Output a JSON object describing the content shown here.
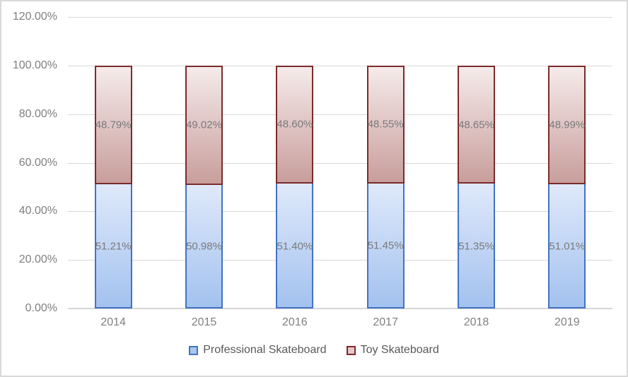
{
  "chart_data": {
    "type": "bar",
    "subtype": "stacked-100-percent-column",
    "title": "",
    "xlabel": "",
    "ylabel": "",
    "categories": [
      "2014",
      "2015",
      "2016",
      "2017",
      "2018",
      "2019"
    ],
    "series": [
      {
        "name": "Professional Skateboard",
        "values": [
          51.21,
          50.98,
          51.4,
          51.45,
          51.35,
          51.01
        ],
        "data_labels": [
          "51.21%",
          "50.98%",
          "51.40%",
          "51.45%",
          "51.35%",
          "51.01%"
        ],
        "fill_gradient_top": "#dfe9fa",
        "fill_gradient_bottom": "#a3c2ef",
        "border_color": "#4472c4"
      },
      {
        "name": "Toy Skateboard",
        "values": [
          48.79,
          49.02,
          48.6,
          48.55,
          48.65,
          48.99
        ],
        "data_labels": [
          "48.79%",
          "49.02%",
          "48.60%",
          "48.55%",
          "48.65%",
          "48.99%"
        ],
        "fill_gradient_top": "#f5ebea",
        "fill_gradient_bottom": "#c89e9c",
        "border_color": "#7b2b2b"
      }
    ],
    "y_ticks": [
      "0.00%",
      "20.00%",
      "40.00%",
      "60.00%",
      "80.00%",
      "100.00%",
      "120.00%"
    ],
    "ylim": [
      0,
      120
    ],
    "y_tick_step": 20,
    "grid": true,
    "gridline_color": "#d9d9d9",
    "axis_line_color": "#d6d6d6",
    "tick_label_color": "#7f7f7f",
    "data_label_color": "#7a7a7a",
    "legend_position": "bottom",
    "legend": [
      {
        "label": "Professional Skateboard",
        "swatch_fill": "#a9c7f0",
        "swatch_border": "#4472c4"
      },
      {
        "label": "Toy Skateboard",
        "swatch_fill": "#e6c8c6",
        "swatch_border": "#7b2b2b"
      }
    ]
  }
}
